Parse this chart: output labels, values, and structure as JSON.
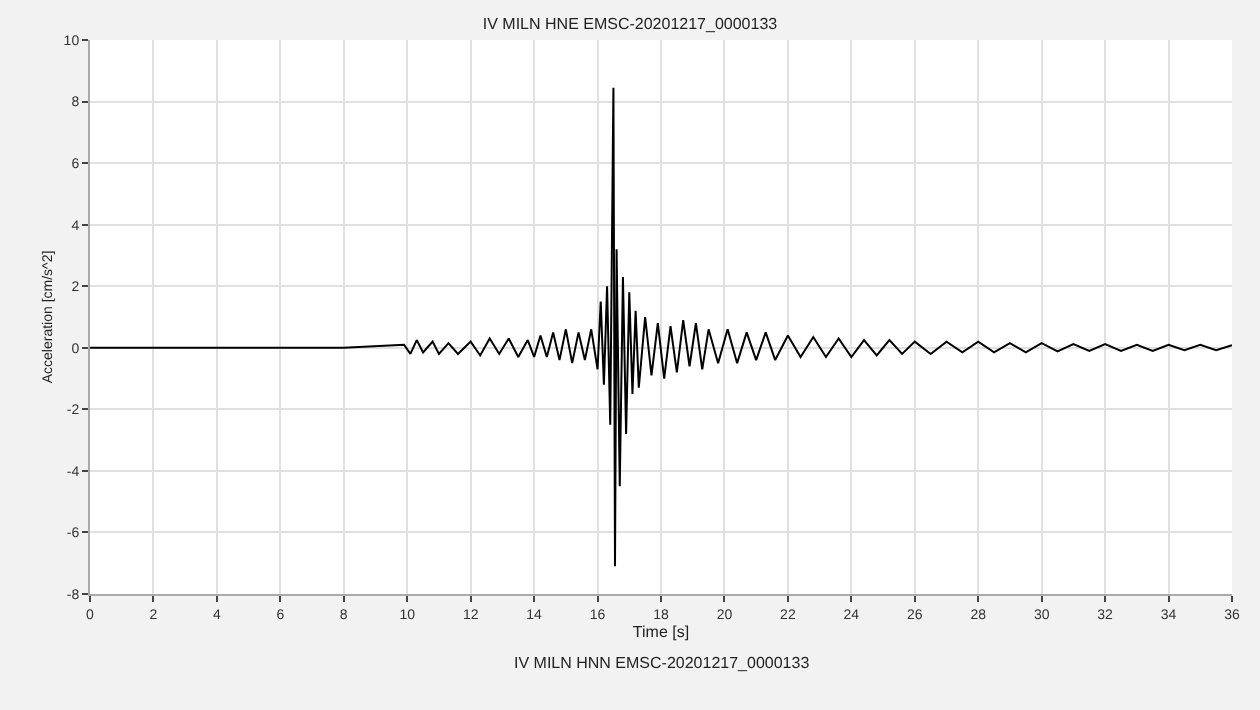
{
  "chart_data": {
    "type": "line",
    "title": "IV MILN HNE EMSC-20201217_0000133",
    "xlabel": "Time [s]",
    "ylabel": "Acceleration [cm/s^2]",
    "annotations": [
      "IV MILN HNN EMSC-20201217_0000133"
    ],
    "x": [
      0,
      2,
      4,
      6,
      8,
      9.9,
      10.1,
      10.3,
      10.5,
      10.8,
      11,
      11.3,
      11.6,
      12,
      12.3,
      12.6,
      12.9,
      13.2,
      13.5,
      13.8,
      14,
      14.2,
      14.4,
      14.6,
      14.8,
      15,
      15.2,
      15.4,
      15.6,
      15.8,
      16,
      16.1,
      16.2,
      16.3,
      16.4,
      16.5,
      16.55,
      16.6,
      16.7,
      16.8,
      16.9,
      17,
      17.1,
      17.2,
      17.3,
      17.5,
      17.7,
      17.9,
      18.1,
      18.3,
      18.5,
      18.7,
      18.9,
      19.1,
      19.3,
      19.5,
      19.8,
      20.1,
      20.4,
      20.7,
      21,
      21.3,
      21.6,
      22,
      22.4,
      22.8,
      23.2,
      23.6,
      24,
      24.4,
      24.8,
      25.2,
      25.6,
      26,
      26.5,
      27,
      27.5,
      28,
      28.5,
      29,
      29.5,
      30,
      30.5,
      31,
      31.5,
      32,
      32.5,
      33,
      33.5,
      34,
      34.5,
      35,
      35.5,
      36
    ],
    "series": [
      {
        "color": "#000000",
        "values": [
          0,
          0,
          0,
          0,
          0,
          0.1,
          -0.2,
          0.25,
          -0.15,
          0.2,
          -0.2,
          0.15,
          -0.2,
          0.2,
          -0.25,
          0.3,
          -0.2,
          0.3,
          -0.3,
          0.25,
          -0.3,
          0.4,
          -0.3,
          0.5,
          -0.4,
          0.6,
          -0.5,
          0.5,
          -0.4,
          0.6,
          -0.7,
          1.5,
          -1.2,
          2.0,
          -2.5,
          8.45,
          -7.1,
          3.2,
          -4.5,
          2.3,
          -2.8,
          1.8,
          -1.5,
          1.2,
          -1.3,
          1.0,
          -0.9,
          0.8,
          -1.0,
          0.7,
          -0.8,
          0.9,
          -0.6,
          0.8,
          -0.7,
          0.6,
          -0.5,
          0.6,
          -0.5,
          0.5,
          -0.4,
          0.5,
          -0.4,
          0.4,
          -0.3,
          0.35,
          -0.3,
          0.3,
          -0.3,
          0.25,
          -0.25,
          0.25,
          -0.2,
          0.2,
          -0.2,
          0.2,
          -0.15,
          0.2,
          -0.15,
          0.15,
          -0.15,
          0.15,
          -0.12,
          0.12,
          -0.1,
          0.12,
          -0.1,
          0.1,
          -0.1,
          0.1,
          -0.08,
          0.1,
          -0.08,
          0.08
        ]
      }
    ],
    "xlim": [
      0,
      36
    ],
    "xticks": [
      0,
      2,
      4,
      6,
      8,
      10,
      12,
      14,
      16,
      18,
      20,
      22,
      24,
      26,
      28,
      30,
      32,
      34,
      36
    ],
    "ylim": [
      -8,
      10
    ],
    "yticks": [
      -8,
      -6,
      -4,
      -2,
      0,
      2,
      4,
      6,
      8,
      10
    ],
    "grid": true,
    "marker": "none",
    "line_style": "solid"
  }
}
